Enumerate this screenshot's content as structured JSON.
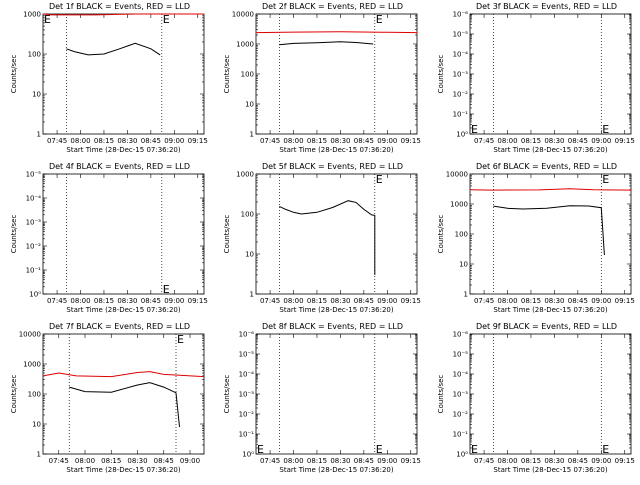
{
  "chart_data": [
    {
      "type": "line",
      "title": "Det 1f BLACK = Events, RED = LLD",
      "xlabel": "Start Time (28-Dec-15 07:36:20)",
      "ylabel": "Counts/sec",
      "x_ticks": [
        "07:45",
        "08:00",
        "08:15",
        "08:30",
        "08:45",
        "09:00",
        "09:15"
      ],
      "xlim": [
        "07:36",
        "09:19"
      ],
      "ylim": [
        1,
        1000
      ],
      "yscale": "log",
      "y_ticks": [
        "1",
        "10",
        "100",
        "1000"
      ],
      "vlines": [
        "07:51",
        "08:52"
      ],
      "markers": [
        {
          "label": "E",
          "x": "07:36",
          "y": 1000
        },
        {
          "label": "E",
          "x": "08:52",
          "y": 1000
        }
      ],
      "series": [
        {
          "color": "#000000",
          "points": [
            [
              "07:51",
              135
            ],
            [
              "07:56",
              115
            ],
            [
              "08:05",
              95
            ],
            [
              "08:15",
              100
            ],
            [
              "08:25",
              135
            ],
            [
              "08:35",
              185
            ],
            [
              "08:45",
              135
            ],
            [
              "08:51",
              95
            ]
          ]
        },
        {
          "color": "#e00000",
          "points": [
            [
              "07:36",
              1000
            ],
            [
              "07:42",
              950
            ],
            [
              "07:51",
              950
            ],
            [
              "08:10",
              950
            ],
            [
              "08:35",
              1000
            ],
            [
              "08:52",
              1000
            ],
            [
              "09:19",
              1000
            ]
          ]
        }
      ]
    },
    {
      "type": "line",
      "title": "Det 2f BLACK = Events, RED = LLD",
      "xlabel": "Start Time (28-Dec-15 07:36:20)",
      "ylabel": "Counts/sec",
      "x_ticks": [
        "07:45",
        "08:00",
        "08:15",
        "08:30",
        "08:45",
        "09:00",
        "09:15"
      ],
      "xlim": [
        "07:36",
        "09:19"
      ],
      "ylim": [
        1,
        10000
      ],
      "yscale": "log",
      "y_ticks": [
        "1",
        "10",
        "100",
        "1000",
        "10000"
      ],
      "vlines": [
        "07:51",
        "08:52"
      ],
      "markers": [
        {
          "label": "E",
          "x": "08:52",
          "y": 10000
        }
      ],
      "series": [
        {
          "color": "#000000",
          "points": [
            [
              "07:51",
              950
            ],
            [
              "08:00",
              1050
            ],
            [
              "08:15",
              1100
            ],
            [
              "08:30",
              1180
            ],
            [
              "08:40",
              1120
            ],
            [
              "08:51",
              1000
            ]
          ]
        },
        {
          "color": "#e00000",
          "points": [
            [
              "07:36",
              2400
            ],
            [
              "08:00",
              2500
            ],
            [
              "08:30",
              2550
            ],
            [
              "09:00",
              2450
            ],
            [
              "09:19",
              2400
            ]
          ]
        }
      ]
    },
    {
      "type": "line",
      "title": "Det 3f BLACK = Events, RED = LLD",
      "xlabel": "Start Time (28-Dec-15 07:36:20)",
      "ylabel": "Counts/sec",
      "x_ticks": [
        "07:45",
        "08:00",
        "08:15",
        "08:30",
        "08:45",
        "09:00",
        "09:15"
      ],
      "xlim": [
        "07:36",
        "09:19"
      ],
      "ylim": [
        1,
        1e-06
      ],
      "yscale": "log",
      "y_ticks": [
        "10⁰",
        "10⁻¹",
        "10⁻²",
        "10⁻³",
        "10⁻⁴",
        "10⁻⁵",
        "10⁻⁶"
      ],
      "vlines": [
        "07:51",
        "09:00"
      ],
      "markers": [
        {
          "label": "E",
          "x": "07:36",
          "y": 1.0
        },
        {
          "label": "E",
          "x": "09:00",
          "y": 1.0
        }
      ],
      "series": []
    },
    {
      "type": "line",
      "title": "Det 4f BLACK = Events, RED = LLD",
      "xlabel": "Start Time (28-Dec-15 07:36:20)",
      "ylabel": "Counts/sec",
      "x_ticks": [
        "07:45",
        "08:00",
        "08:15",
        "08:30",
        "08:45",
        "09:00",
        "09:15"
      ],
      "xlim": [
        "07:36",
        "09:19"
      ],
      "ylim": [
        1,
        1e-05
      ],
      "yscale": "log",
      "y_ticks": [
        "10⁰",
        "10⁻¹",
        "10⁻²",
        "10⁻³",
        "10⁻⁴",
        "10⁻⁵"
      ],
      "vlines": [
        "07:51",
        "08:52"
      ],
      "markers": [
        {
          "label": "E",
          "x": "08:52",
          "y": 1.0
        }
      ],
      "series": []
    },
    {
      "type": "line",
      "title": "Det 5f BLACK = Events, RED = LLD",
      "xlabel": "Start Time (28-Dec-15 07:36:20)",
      "ylabel": "Counts/sec",
      "x_ticks": [
        "07:45",
        "08:00",
        "08:15",
        "08:30",
        "08:45",
        "09:00",
        "09:15"
      ],
      "xlim": [
        "07:36",
        "09:19"
      ],
      "ylim": [
        1,
        1000
      ],
      "yscale": "log",
      "y_ticks": [
        "1",
        "10",
        "100",
        "1000"
      ],
      "vlines": [
        "07:51",
        "08:52"
      ],
      "markers": [
        {
          "label": "E",
          "x": "08:52",
          "y": 1000
        }
      ],
      "series": [
        {
          "color": "#000000",
          "points": [
            [
              "07:51",
              155
            ],
            [
              "07:55",
              130
            ],
            [
              "08:00",
              110
            ],
            [
              "08:05",
              100
            ],
            [
              "08:15",
              110
            ],
            [
              "08:25",
              145
            ],
            [
              "08:35",
              215
            ],
            [
              "08:40",
              195
            ],
            [
              "08:45",
              130
            ],
            [
              "08:50",
              95
            ],
            [
              "08:52",
              92
            ],
            [
              "08:52",
              3
            ]
          ]
        }
      ]
    },
    {
      "type": "line",
      "title": "Det 6f BLACK = Events, RED = LLD",
      "xlabel": "Start Time (28-Dec-15 07:36:20)",
      "ylabel": "Counts/sec",
      "x_ticks": [
        "07:45",
        "08:00",
        "08:15",
        "08:30",
        "08:45",
        "09:00",
        "09:15"
      ],
      "xlim": [
        "07:36",
        "09:19"
      ],
      "ylim": [
        1,
        10000
      ],
      "yscale": "log",
      "y_ticks": [
        "1",
        "10",
        "100",
        "1000",
        "10000"
      ],
      "vlines": [
        "07:51",
        "09:00"
      ],
      "markers": [
        {
          "label": "E",
          "x": "09:00",
          "y": 10000
        }
      ],
      "series": [
        {
          "color": "#000000",
          "points": [
            [
              "07:51",
              850
            ],
            [
              "08:00",
              720
            ],
            [
              "08:10",
              680
            ],
            [
              "08:25",
              720
            ],
            [
              "08:40",
              880
            ],
            [
              "08:52",
              860
            ],
            [
              "09:00",
              750
            ],
            [
              "09:02",
              20
            ]
          ]
        },
        {
          "color": "#e00000",
          "points": [
            [
              "07:36",
              3000
            ],
            [
              "07:50",
              2900
            ],
            [
              "08:20",
              2950
            ],
            [
              "08:40",
              3200
            ],
            [
              "08:55",
              3000
            ],
            [
              "09:19",
              2900
            ]
          ]
        }
      ]
    },
    {
      "type": "line",
      "title": "Det 7f BLACK = Events, RED = LLD",
      "xlabel": "Start Time (28-Dec-15 07:36:20)",
      "ylabel": "Counts/sec",
      "x_ticks": [
        "07:45",
        "08:00",
        "08:15",
        "08:30",
        "08:45",
        "09:00"
      ],
      "xlim": [
        "07:36",
        "09:08"
      ],
      "ylim": [
        1,
        10000
      ],
      "yscale": "log",
      "y_ticks": [
        "1",
        "10",
        "100",
        "1000",
        "10000"
      ],
      "vlines": [
        "07:51",
        "08:52"
      ],
      "markers": [
        {
          "label": "E",
          "x": "08:52",
          "y": 10000
        }
      ],
      "series": [
        {
          "color": "#000000",
          "points": [
            [
              "07:51",
              170
            ],
            [
              "08:00",
              120
            ],
            [
              "08:15",
              115
            ],
            [
              "08:30",
              200
            ],
            [
              "08:37",
              240
            ],
            [
              "08:45",
              170
            ],
            [
              "08:52",
              110
            ],
            [
              "08:54",
              8
            ]
          ]
        },
        {
          "color": "#e00000",
          "points": [
            [
              "07:36",
              400
            ],
            [
              "07:45",
              500
            ],
            [
              "07:55",
              400
            ],
            [
              "08:15",
              380
            ],
            [
              "08:30",
              520
            ],
            [
              "08:37",
              560
            ],
            [
              "08:45",
              450
            ],
            [
              "09:08",
              380
            ]
          ]
        }
      ]
    },
    {
      "type": "line",
      "title": "Det 8f BLACK = Events, RED = LLD",
      "xlabel": "Start Time (28-Dec-15 07:36:20)",
      "ylabel": "Counts/sec",
      "x_ticks": [
        "07:45",
        "08:00",
        "08:15",
        "08:30",
        "08:45",
        "09:00",
        "09:15"
      ],
      "xlim": [
        "07:36",
        "09:19"
      ],
      "ylim": [
        1,
        1e-06
      ],
      "yscale": "log",
      "y_ticks": [
        "10⁰",
        "10⁻¹",
        "10⁻²",
        "10⁻³",
        "10⁻⁴",
        "10⁻⁵",
        "10⁻⁶"
      ],
      "vlines": [
        "07:51",
        "08:52"
      ],
      "markers": [
        {
          "label": "E",
          "x": "07:36",
          "y": 1.0
        },
        {
          "label": "E",
          "x": "08:52",
          "y": 1.0
        }
      ],
      "series": []
    },
    {
      "type": "line",
      "title": "Det 9f BLACK = Events, RED = LLD",
      "xlabel": "Start Time (28-Dec-15 07:36:20)",
      "ylabel": "Counts/sec",
      "x_ticks": [
        "07:45",
        "08:00",
        "08:15",
        "08:30",
        "08:45",
        "09:00",
        "09:15"
      ],
      "xlim": [
        "07:36",
        "09:19"
      ],
      "ylim": [
        1,
        1e-06
      ],
      "yscale": "log",
      "y_ticks": [
        "10⁰",
        "10⁻¹",
        "10⁻²",
        "10⁻³",
        "10⁻⁴",
        "10⁻⁵",
        "10⁻⁶"
      ],
      "vlines": [
        "07:51",
        "09:00"
      ],
      "markers": [
        {
          "label": "E",
          "x": "07:36",
          "y": 1.0
        },
        {
          "label": "E",
          "x": "09:00",
          "y": 1.0
        }
      ],
      "series": []
    }
  ]
}
